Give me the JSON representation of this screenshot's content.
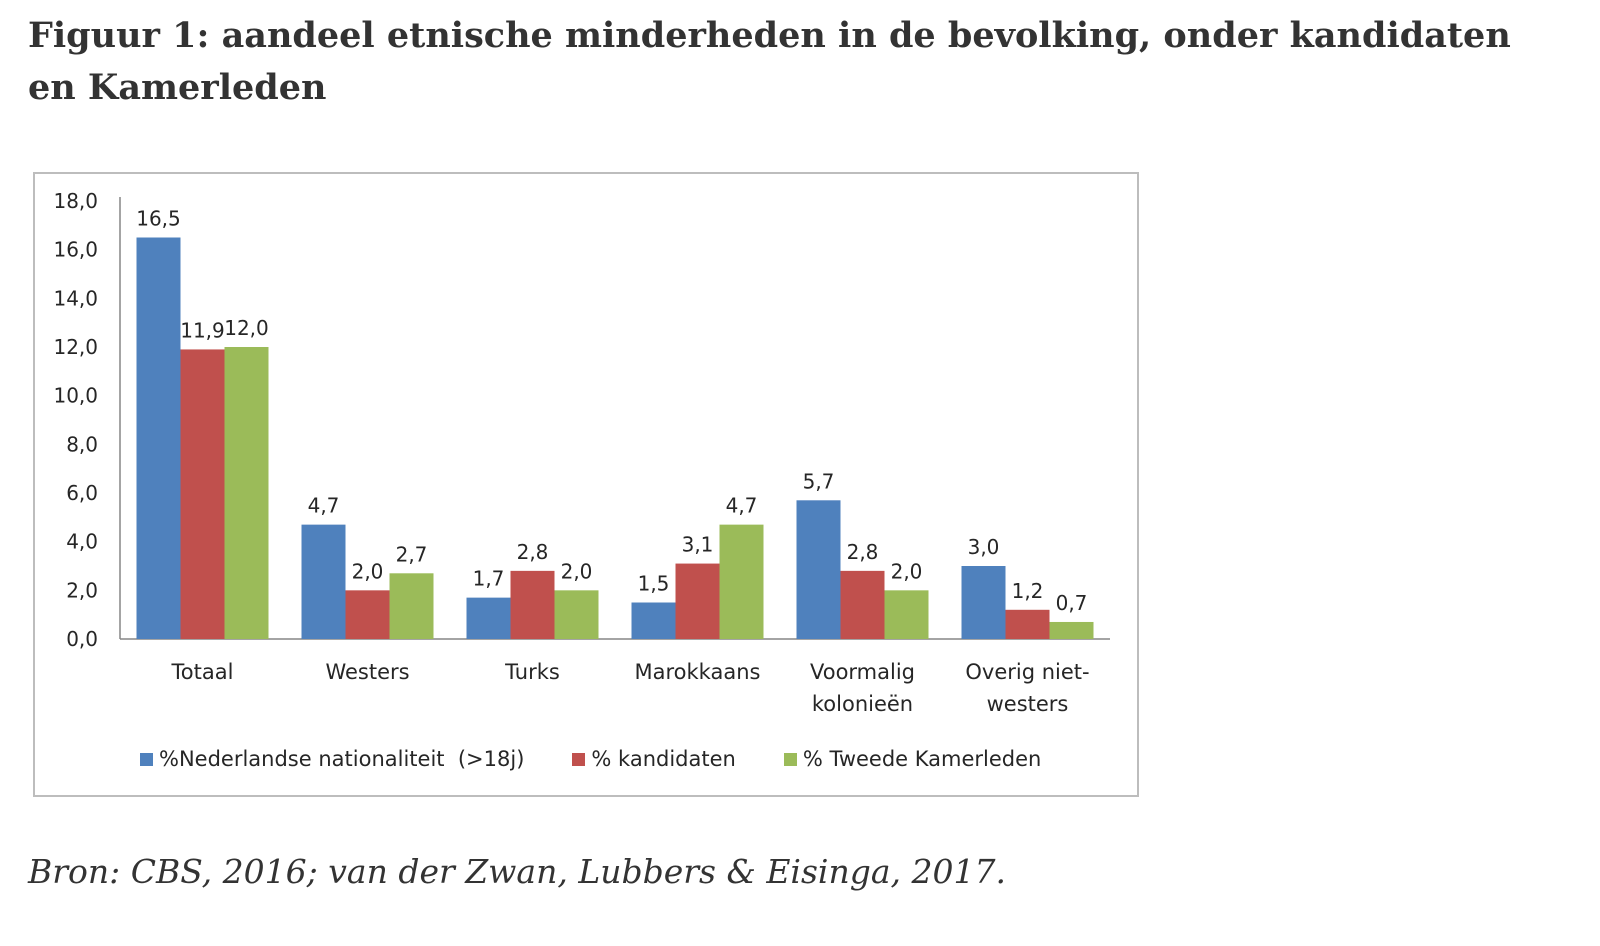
{
  "title": "Figuur 1: aandeel etnische minderheden in de bevolking, onder kandidaten en Kamerleden",
  "source": "Bron: CBS, 2016; van der Zwan, Lubbers & Eisinga, 2017.",
  "chart_data": {
    "type": "bar",
    "categories": [
      [
        "Totaal"
      ],
      [
        "Westers"
      ],
      [
        "Turks"
      ],
      [
        "Marokkaans"
      ],
      [
        "Voormalig",
        "kolonieën"
      ],
      [
        "Overig niet-",
        "westers"
      ]
    ],
    "series": [
      {
        "name": "%Nederlandse nationaliteit  (>18j)",
        "color": "#4f81bd",
        "values": [
          16.5,
          4.7,
          1.7,
          1.5,
          5.7,
          3.0
        ],
        "labels": [
          "16,5",
          "4,7",
          "1,7",
          "1,5",
          "5,7",
          "3,0"
        ]
      },
      {
        "name": "% kandidaten",
        "color": "#c0504d",
        "values": [
          11.9,
          2.0,
          2.8,
          3.1,
          2.8,
          1.2
        ],
        "labels": [
          "11,9",
          "2,0",
          "2,8",
          "3,1",
          "2,8",
          "1,2"
        ]
      },
      {
        "name": "% Tweede Kamerleden",
        "color": "#9bbb59",
        "values": [
          12.0,
          2.7,
          2.0,
          4.7,
          2.0,
          0.7
        ],
        "labels": [
          "12,0",
          "2,7",
          "2,0",
          "4,7",
          "2,0",
          "0,7"
        ]
      }
    ],
    "yticks": [
      "0,0",
      "2,0",
      "4,0",
      "6,0",
      "8,0",
      "10,0",
      "12,0",
      "14,0",
      "16,0",
      "18,0"
    ],
    "ylim": [
      0,
      18
    ],
    "xlabel": "",
    "ylabel": "",
    "grid": false,
    "legend_position": "bottom"
  }
}
